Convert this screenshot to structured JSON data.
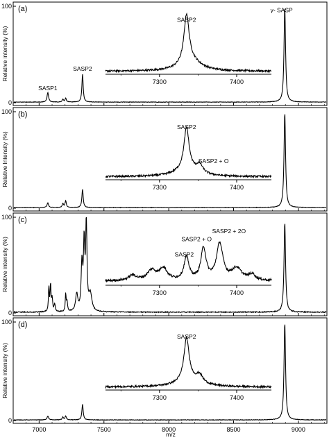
{
  "chart_data": {
    "type": "line",
    "xlabel": "m/z",
    "xlim": [
      6800,
      9220
    ],
    "x_ticks": [
      "7000",
      "7500",
      "8000",
      "8500",
      "9000"
    ],
    "x_tick_values": [
      7000,
      7500,
      8000,
      8500,
      9000
    ],
    "inset_xlim": [
      7230,
      7445
    ],
    "inset_ticks": [
      "7300",
      "7400"
    ],
    "inset_tick_values": [
      7300,
      7400
    ],
    "panels": [
      {
        "label": "(a)",
        "ylabel": "Relative intensity (%)",
        "ylim": [
          0,
          100
        ],
        "y_ticks": [
          "0",
          "100"
        ],
        "y_tick_values": [
          0,
          100
        ],
        "peaks": [
          {
            "x": 7067,
            "y": 10,
            "w": 7
          },
          {
            "x": 7183,
            "y": 3,
            "w": 6
          },
          {
            "x": 7205,
            "y": 4,
            "w": 6
          },
          {
            "x": 7335,
            "y": 29,
            "w": 6
          },
          {
            "x": 8895,
            "y": 99,
            "w": 7
          }
        ],
        "baseline_noise": 0.6,
        "annotations": [
          {
            "text": "SASP1",
            "x": 7067,
            "y": 13
          },
          {
            "text": "SASP2",
            "x": 7335,
            "y": 33
          },
          {
            "text": "γ- SASP",
            "x": 8870,
            "y": 94
          }
        ],
        "inset": {
          "peaks": [
            {
              "x": 7335,
              "y": 80,
              "w": 4
            },
            {
              "x": 7340,
              "y": 18,
              "w": 16
            }
          ],
          "baseline": 5,
          "noise": 1.5,
          "annotations": [
            {
              "text": "SASP2",
              "x": 7335,
              "y": 88
            }
          ]
        }
      },
      {
        "label": "(b)",
        "ylabel": "Relative Intensity (%)",
        "ylim": [
          0,
          100
        ],
        "y_ticks": [
          "0",
          "100"
        ],
        "y_tick_values": [
          0,
          100
        ],
        "peaks": [
          {
            "x": 7067,
            "y": 5,
            "w": 7
          },
          {
            "x": 7183,
            "y": 4,
            "w": 6
          },
          {
            "x": 7205,
            "y": 7,
            "w": 6
          },
          {
            "x": 7335,
            "y": 19,
            "w": 6
          },
          {
            "x": 8895,
            "y": 99,
            "w": 7
          }
        ],
        "baseline_noise": 0.6,
        "annotations": [],
        "inset": {
          "peaks": [
            {
              "x": 7335,
              "y": 70,
              "w": 4
            },
            {
              "x": 7352,
              "y": 14,
              "w": 5
            },
            {
              "x": 7335,
              "y": 12,
              "w": 18
            }
          ],
          "baseline": 5,
          "noise": 1.5,
          "annotations": [
            {
              "text": "SASP2",
              "x": 7335,
              "y": 85
            },
            {
              "text": "SASP2 + O",
              "x": 7370,
              "y": 28
            }
          ]
        }
      },
      {
        "label": "(c)",
        "ylabel": "Relative intensity (%)",
        "ylim": [
          0,
          100
        ],
        "y_ticks": [
          "0",
          "100"
        ],
        "y_tick_values": [
          0,
          100
        ],
        "peaks": [
          {
            "x": 7075,
            "y": 25,
            "w": 4
          },
          {
            "x": 7088,
            "y": 28,
            "w": 4
          },
          {
            "x": 7100,
            "y": 14,
            "w": 5
          },
          {
            "x": 7120,
            "y": 8,
            "w": 5
          },
          {
            "x": 7205,
            "y": 18,
            "w": 4
          },
          {
            "x": 7215,
            "y": 10,
            "w": 5
          },
          {
            "x": 7290,
            "y": 18,
            "w": 10
          },
          {
            "x": 7330,
            "y": 48,
            "w": 7
          },
          {
            "x": 7347,
            "y": 68,
            "w": 6
          },
          {
            "x": 7364,
            "y": 92,
            "w": 6
          },
          {
            "x": 7395,
            "y": 18,
            "w": 14
          },
          {
            "x": 8895,
            "y": 94,
            "w": 7
          }
        ],
        "baseline_noise": 1.2,
        "annotations": [],
        "inset": {
          "peaks": [
            {
              "x": 7265,
              "y": 9,
              "w": 6
            },
            {
              "x": 7290,
              "y": 17,
              "w": 7
            },
            {
              "x": 7305,
              "y": 20,
              "w": 6
            },
            {
              "x": 7335,
              "y": 38,
              "w": 4
            },
            {
              "x": 7357,
              "y": 53,
              "w": 4
            },
            {
              "x": 7378,
              "y": 61,
              "w": 5
            },
            {
              "x": 7400,
              "y": 20,
              "w": 8
            },
            {
              "x": 7420,
              "y": 10,
              "w": 5
            }
          ],
          "baseline": 7,
          "noise": 2,
          "annotations": [
            {
              "text": "SASP2",
              "x": 7332,
              "y": 48
            },
            {
              "text": "SASP2 + O",
              "x": 7348,
              "y": 74
            },
            {
              "text": "SASP2 + 2O",
              "x": 7390,
              "y": 87
            }
          ]
        }
      },
      {
        "label": "(d)",
        "ylabel": "Relative intensity (%)",
        "ylim": [
          0,
          100
        ],
        "y_ticks": [
          "0",
          "100"
        ],
        "y_tick_values": [
          0,
          100
        ],
        "peaks": [
          {
            "x": 7067,
            "y": 4,
            "w": 7
          },
          {
            "x": 7183,
            "y": 3,
            "w": 6
          },
          {
            "x": 7205,
            "y": 4,
            "w": 6
          },
          {
            "x": 7335,
            "y": 16,
            "w": 6
          },
          {
            "x": 8895,
            "y": 99,
            "w": 7
          }
        ],
        "baseline_noise": 0.6,
        "annotations": [],
        "inset": {
          "peaks": [
            {
              "x": 7335,
              "y": 70,
              "w": 4
            },
            {
              "x": 7352,
              "y": 13,
              "w": 5
            },
            {
              "x": 7338,
              "y": 12,
              "w": 18
            }
          ],
          "baseline": 5,
          "noise": 1.5,
          "annotations": [
            {
              "text": "SASP2",
              "x": 7335,
              "y": 86
            }
          ]
        }
      }
    ]
  }
}
